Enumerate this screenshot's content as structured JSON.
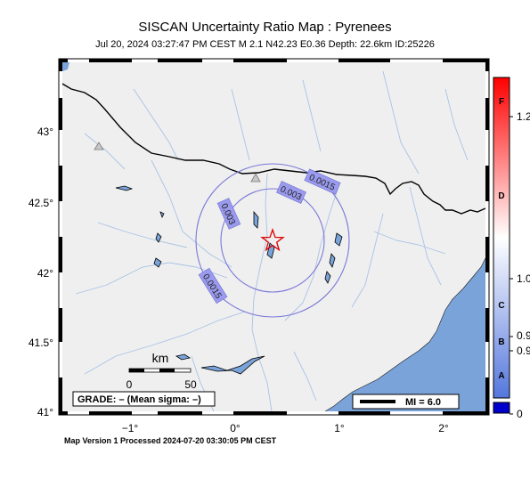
{
  "header": {
    "title": "SISCAN Uncertainty Ratio Map : Pyrenees",
    "subtitle": "Jul 20, 2024 03:27:47 PM CEST   M 2.1   N42.23 E0.36   Depth: 22.6km   ID:25226"
  },
  "axes": {
    "lat_ticks": [
      "43°",
      "42.5°",
      "42°",
      "41.5°",
      "41°"
    ],
    "lon_ticks": [
      "−1°",
      "0°",
      "1°",
      "2°"
    ]
  },
  "contours": {
    "labels": [
      "0.0015",
      "0.003",
      "0.003",
      "0.0015"
    ]
  },
  "scale_bar": {
    "unit": "km",
    "start": "0",
    "end": "50"
  },
  "grade_box": {
    "text": "GRADE: – (Mean sigma: –)"
  },
  "mmi_box": {
    "text": "MI = 6.0"
  },
  "colorbar": {
    "letters": [
      "F",
      "D",
      "C",
      "B",
      "A"
    ],
    "values": [
      "1.2",
      "1.0",
      "0.9",
      "0.9",
      "0"
    ],
    "colors": {
      "top": "#ff0000",
      "mid": "#ffffff",
      "bottom": "#0000cc"
    }
  },
  "footer": {
    "text": "Map Version 1 Processed 2024-07-20 03:30:05 PM CEST"
  },
  "colors": {
    "land": "#efefef",
    "sea": "#7aa3d9",
    "rivers": "#a8c3e6",
    "contours": "#7a78d8",
    "epicenter": "#e00000"
  },
  "icons": {
    "epicenter": "star-icon",
    "stations": "triangle-icon"
  }
}
